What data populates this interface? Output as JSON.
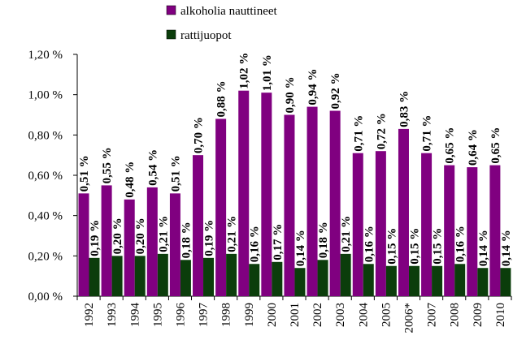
{
  "chart_data": {
    "type": "bar",
    "categories": [
      "1992",
      "1993",
      "1994",
      "1995",
      "1996",
      "1997",
      "1998",
      "1999",
      "2000",
      "2001",
      "2002",
      "2003",
      "2004",
      "2005",
      "2006*",
      "2007",
      "2008",
      "2009",
      "2010"
    ],
    "series": [
      {
        "name": "alkoholia nauttineet",
        "color": "#800080",
        "values": [
          0.51,
          0.55,
          0.48,
          0.54,
          0.51,
          0.7,
          0.88,
          1.02,
          1.01,
          0.9,
          0.94,
          0.92,
          0.71,
          0.72,
          0.83,
          0.71,
          0.65,
          0.64,
          0.65
        ],
        "value_labels": [
          "0,51 %",
          "0,55 %",
          "0,48 %",
          "0,54 %",
          "0,51 %",
          "0,70 %",
          "0,88 %",
          "1,02 %",
          "1,01 %",
          "0,90 %",
          "0,94 %",
          "0,92 %",
          "0,71 %",
          "0,72 %",
          "0,83 %",
          "0,71 %",
          "0,65 %",
          "0,64 %",
          "0,65 %"
        ]
      },
      {
        "name": "rattijuopot",
        "color": "#0b3d0b",
        "values": [
          0.19,
          0.2,
          0.2,
          0.21,
          0.18,
          0.19,
          0.21,
          0.16,
          0.17,
          0.14,
          0.18,
          0.21,
          0.16,
          0.15,
          0.15,
          0.15,
          0.16,
          0.14,
          0.14
        ],
        "value_labels": [
          "0,19 %",
          "0,20 %",
          "0,20 %",
          "0,21 %",
          "0,18 %",
          "0,19 %",
          "0,21 %",
          "0,16 %",
          "0,17 %",
          "0,14 %",
          "0,18 %",
          "0,21 %",
          "0,16 %",
          "0,15 %",
          "0,15 %",
          "0,15 %",
          "0,16 %",
          "0,14 %",
          "0,14 %"
        ]
      }
    ],
    "ylim": [
      0,
      1.2
    ],
    "yticks": [
      {
        "value": 0,
        "label": "0,00 %"
      },
      {
        "value": 0.2,
        "label": "0,20 %"
      },
      {
        "value": 0.4,
        "label": "0,40 %"
      },
      {
        "value": 0.6,
        "label": "0,60 %"
      },
      {
        "value": 0.8,
        "label": "0,80 %"
      },
      {
        "value": 1.0,
        "label": "1,00 %"
      },
      {
        "value": 1.2,
        "label": "1,20 %"
      }
    ]
  }
}
